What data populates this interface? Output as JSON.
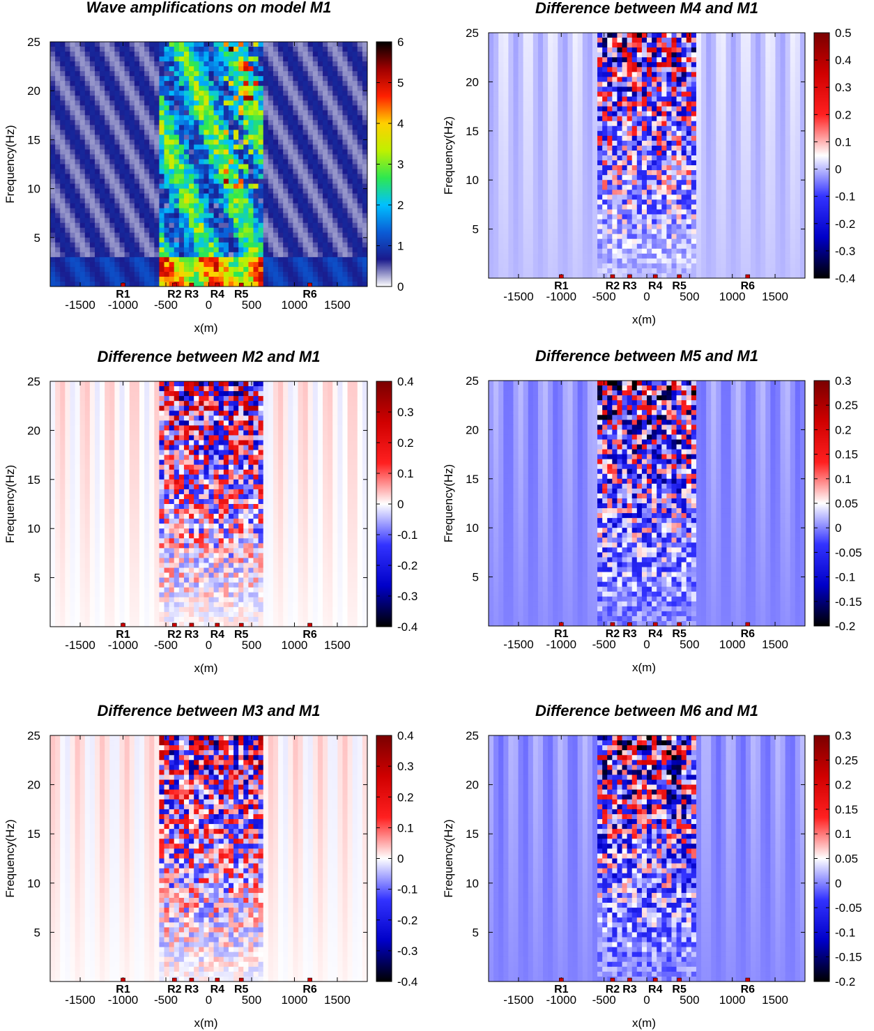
{
  "figure": {
    "receivers": [
      {
        "label": "R1",
        "x": -1000
      },
      {
        "label": "R2",
        "x": -400
      },
      {
        "label": "R3",
        "x": -200
      },
      {
        "label": "R4",
        "x": 100
      },
      {
        "label": "R5",
        "x": 380
      },
      {
        "label": "R6",
        "x": 1180
      }
    ],
    "colors": {
      "jet": [
        "#ffffff",
        "#1a1a8c",
        "#0a5cd6",
        "#00c0ff",
        "#2ee850",
        "#c0f000",
        "#ffd000",
        "#ff2000",
        "#a00000",
        "#000000"
      ],
      "diverging": [
        "#000000",
        "#0000c8",
        "#3333ff",
        "#ffffff",
        "#ff2020",
        "#d00000",
        "#7a0000"
      ],
      "receiver_marker": "#cc0000"
    }
  },
  "chart_data": [
    {
      "type": "heatmap",
      "title": "Wave amplifications on model M1",
      "xlabel": "x(m)",
      "ylabel": "Frequency(Hz)",
      "xlim": [
        -1850,
        1850
      ],
      "ylim": [
        0,
        25
      ],
      "xticks": [
        -1500,
        -1000,
        -500,
        0,
        500,
        1000,
        1500
      ],
      "yticks": [
        5,
        10,
        15,
        20,
        25
      ],
      "colorbar": {
        "ticks": [
          0,
          1,
          2,
          3,
          4,
          5,
          6
        ],
        "range": [
          0,
          6
        ],
        "colormap": "jet"
      },
      "basin": [
        -580,
        620
      ]
    },
    {
      "type": "heatmap",
      "title": "Difference between M4 and M1",
      "xlabel": "x(m)",
      "ylabel": "Frequency(Hz)",
      "xlim": [
        -1850,
        1850
      ],
      "ylim": [
        0,
        25
      ],
      "xticks": [
        -1500,
        -1000,
        -500,
        0,
        500,
        1000,
        1500
      ],
      "yticks": [
        5,
        10,
        15,
        20,
        25
      ],
      "colorbar": {
        "ticks": [
          -0.4,
          -0.3,
          -0.2,
          -0.1,
          0,
          0.1,
          0.2,
          0.3,
          0.4,
          0.5
        ],
        "range": [
          -0.4,
          0.5
        ],
        "colormap": "diverging"
      },
      "basin": [
        -580,
        560
      ]
    },
    {
      "type": "heatmap",
      "title": "Difference between M2 and M1",
      "xlabel": "x(m)",
      "ylabel": "Frequency(Hz)",
      "xlim": [
        -1850,
        1850
      ],
      "ylim": [
        0,
        25
      ],
      "xticks": [
        -1500,
        -1000,
        -500,
        0,
        500,
        1000,
        1500
      ],
      "yticks": [
        5,
        10,
        15,
        20,
        25
      ],
      "colorbar": {
        "ticks": [
          -0.4,
          -0.3,
          -0.2,
          -0.1,
          0,
          0.1,
          0.2,
          0.3,
          0.4
        ],
        "range": [
          -0.4,
          0.4
        ],
        "colormap": "diverging"
      },
      "basin": [
        -580,
        620
      ]
    },
    {
      "type": "heatmap",
      "title": "Difference between M5 and M1",
      "xlabel": "x(m)",
      "ylabel": "Frequency(Hz)",
      "xlim": [
        -1850,
        1850
      ],
      "ylim": [
        0,
        25
      ],
      "xticks": [
        -1500,
        -1000,
        -500,
        0,
        500,
        1000,
        1500
      ],
      "yticks": [
        5,
        10,
        15,
        20,
        25
      ],
      "colorbar": {
        "ticks": [
          -0.2,
          -0.15,
          -0.1,
          -0.05,
          0,
          0.05,
          0.1,
          0.15,
          0.2,
          0.25,
          0.3
        ],
        "range": [
          -0.2,
          0.3
        ],
        "colormap": "diverging"
      },
      "basin": [
        -580,
        560
      ]
    },
    {
      "type": "heatmap",
      "title": "Difference between M3 and M1",
      "xlabel": "x(m)",
      "ylabel": "Frequency(Hz)",
      "xlim": [
        -1850,
        1850
      ],
      "ylim": [
        0,
        25
      ],
      "xticks": [
        -1500,
        -1000,
        -500,
        0,
        500,
        1000,
        1500
      ],
      "yticks": [
        5,
        10,
        15,
        20,
        25
      ],
      "colorbar": {
        "ticks": [
          -0.4,
          -0.3,
          -0.2,
          -0.1,
          0,
          0.1,
          0.2,
          0.3,
          0.4
        ],
        "range": [
          -0.4,
          0.4
        ],
        "colormap": "diverging"
      },
      "basin": [
        -580,
        620
      ]
    },
    {
      "type": "heatmap",
      "title": "Difference between M6 and M1",
      "xlabel": "x(m)",
      "ylabel": "Frequency(Hz)",
      "xlim": [
        -1850,
        1850
      ],
      "ylim": [
        0,
        25
      ],
      "xticks": [
        -1500,
        -1000,
        -500,
        0,
        500,
        1000,
        1500
      ],
      "yticks": [
        5,
        10,
        15,
        20,
        25
      ],
      "colorbar": {
        "ticks": [
          -0.2,
          -0.15,
          -0.1,
          -0.05,
          0,
          0.05,
          0.1,
          0.15,
          0.2,
          0.25,
          0.3
        ],
        "range": [
          -0.2,
          0.3
        ],
        "colormap": "diverging"
      },
      "basin": [
        -580,
        560
      ]
    }
  ]
}
